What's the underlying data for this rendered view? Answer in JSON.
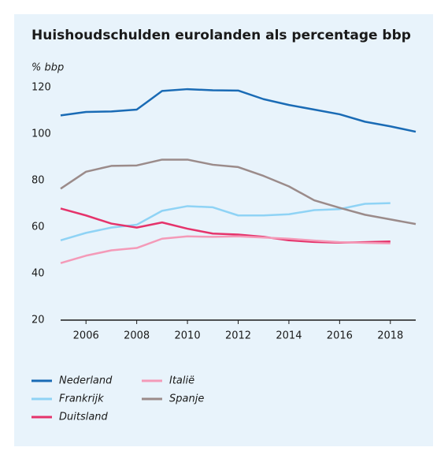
{
  "chart_data": {
    "type": "line",
    "title": "Huishoudschulden eurolanden als percentage bbp",
    "y_label": "% bbp",
    "x": [
      2005,
      2006,
      2007,
      2008,
      2009,
      2010,
      2011,
      2012,
      2013,
      2014,
      2015,
      2016,
      2017,
      2018,
      2019
    ],
    "xlim": [
      2005,
      2019
    ],
    "xticks": [
      2006,
      2008,
      2010,
      2012,
      2014,
      2016,
      2018
    ],
    "ylim": [
      20,
      120
    ],
    "yticks": [
      20,
      40,
      60,
      80,
      100,
      120
    ],
    "series": [
      {
        "name": "Nederland",
        "color": "#1a6bb5",
        "values": [
          108,
          109.5,
          109.7,
          110.5,
          118.5,
          119.3,
          118.8,
          118.7,
          115,
          112.5,
          110.5,
          108.5,
          105.3,
          103.3,
          101
        ]
      },
      {
        "name": "Frankrijk",
        "color": "#8fd3f5",
        "values": [
          54.3,
          57.5,
          59.8,
          61,
          67,
          69,
          68.5,
          65,
          65,
          65.5,
          67.3,
          67.7,
          70,
          70.3,
          null
        ]
      },
      {
        "name": "Duitsland",
        "color": "#e5336b",
        "values": [
          68,
          65,
          61.5,
          59.8,
          62,
          59.3,
          57.2,
          56.8,
          55.8,
          54.3,
          53.6,
          53.3,
          53.5,
          53.8,
          null
        ]
      },
      {
        "name": "Italië",
        "color": "#f49ab8",
        "values": [
          44.5,
          47.7,
          50,
          51,
          55,
          56,
          55.8,
          56,
          55.5,
          55,
          54.2,
          53.5,
          53.2,
          53,
          null
        ]
      },
      {
        "name": "Spanje",
        "color": "#9b8b8a",
        "values": [
          76.5,
          83.8,
          86.3,
          86.5,
          89,
          89,
          86.8,
          85.8,
          82,
          77.5,
          71.5,
          68.3,
          65.3,
          63.3,
          61.3
        ]
      }
    ]
  }
}
